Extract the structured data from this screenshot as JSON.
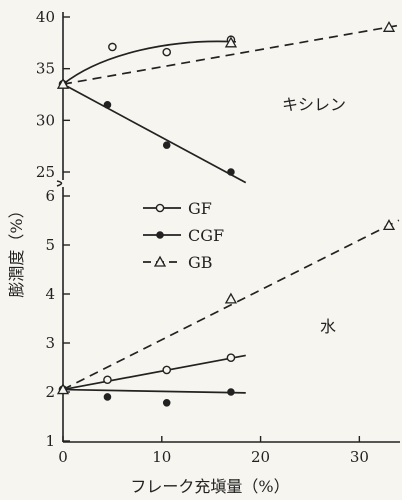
{
  "chart_data": {
    "type": "line",
    "xlabel": "フレーク充塡量（%）",
    "ylabel": "膨潤度（%）",
    "xlim": [
      0,
      34
    ],
    "x_ticks": [
      "0",
      "10",
      "20",
      "30"
    ],
    "legend": {
      "placement": "center-left",
      "entries": [
        {
          "name": "GF",
          "marker": "open-circle",
          "linestyle": "solid"
        },
        {
          "name": "CGF",
          "marker": "filled-circle",
          "linestyle": "solid"
        },
        {
          "name": "GB",
          "marker": "open-triangle",
          "linestyle": "dashed"
        }
      ]
    },
    "panels": [
      {
        "label": "キシレン",
        "ylim": [
          24,
          41
        ],
        "y_ticks": [
          "25",
          "30",
          "35",
          "40"
        ],
        "series": [
          {
            "name": "GF",
            "points": [
              [
                0,
                33.5
              ],
              [
                5,
                37.1
              ],
              [
                10.5,
                36.6
              ],
              [
                17,
                37.8
              ]
            ]
          },
          {
            "name": "CGF",
            "points": [
              [
                0,
                33.5
              ],
              [
                4.5,
                31.5
              ],
              [
                10.5,
                27.6
              ],
              [
                17,
                25.0
              ]
            ]
          },
          {
            "name": "GB",
            "points": [
              [
                0,
                33.5
              ],
              [
                17,
                37.5
              ],
              [
                33,
                39.0
              ]
            ]
          }
        ]
      },
      {
        "label": "水",
        "ylim": [
          1,
          6.3
        ],
        "y_ticks": [
          "1",
          "2",
          "3",
          "4",
          "5",
          "6"
        ],
        "series": [
          {
            "name": "GF",
            "points": [
              [
                0,
                2.05
              ],
              [
                4.5,
                2.25
              ],
              [
                10.5,
                2.45
              ],
              [
                17,
                2.7
              ]
            ]
          },
          {
            "name": "CGF",
            "points": [
              [
                0,
                2.05
              ],
              [
                4.5,
                1.9
              ],
              [
                10.5,
                1.78
              ],
              [
                17,
                2.0
              ]
            ]
          },
          {
            "name": "GB",
            "points": [
              [
                0,
                2.05
              ],
              [
                17,
                3.9
              ],
              [
                33,
                5.4
              ]
            ]
          }
        ]
      }
    ]
  }
}
